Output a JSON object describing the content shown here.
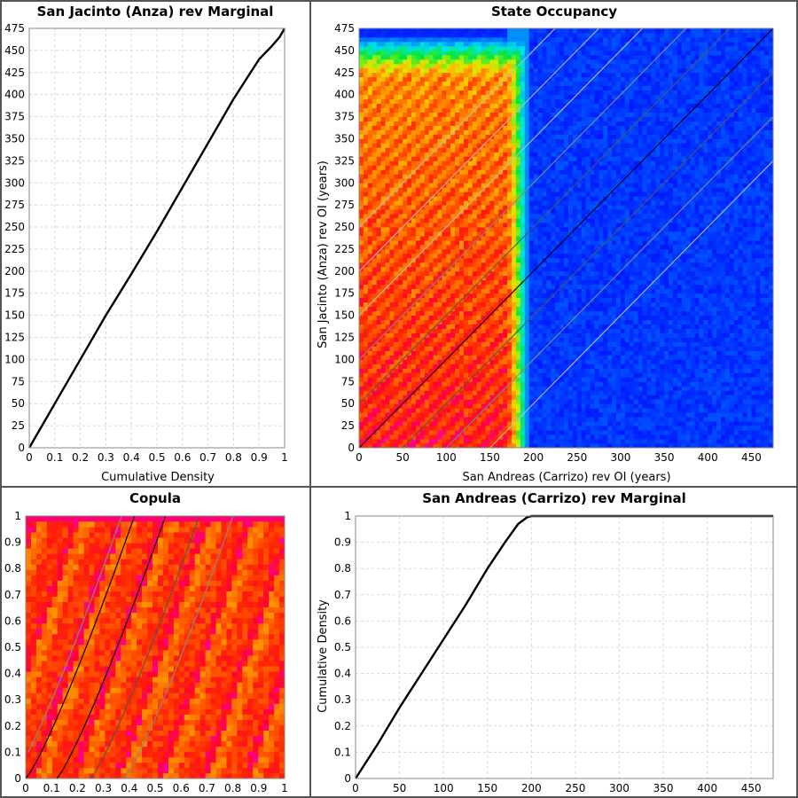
{
  "chart_data": [
    {
      "id": "sj_marginal",
      "type": "line",
      "title": "San Jacinto (Anza) rev Marginal",
      "xlabel": "Cumulative Density",
      "ylabel": "",
      "xlim": [
        0,
        1
      ],
      "ylim": [
        0,
        475
      ],
      "xticks": [
        "0",
        "0.1",
        "0.2",
        "0.3",
        "0.4",
        "0.5",
        "0.6",
        "0.7",
        "0.8",
        "0.9",
        "1"
      ],
      "yticks": [
        "0",
        "25",
        "50",
        "75",
        "100",
        "125",
        "150",
        "175",
        "200",
        "225",
        "250",
        "275",
        "300",
        "325",
        "350",
        "375",
        "400",
        "425",
        "450",
        "475"
      ],
      "grid": true,
      "series": [
        {
          "color": "#000000",
          "x": [
            0,
            0.05,
            0.1,
            0.2,
            0.3,
            0.4,
            0.5,
            0.6,
            0.7,
            0.8,
            0.9,
            0.95,
            0.98,
            0.99,
            1
          ],
          "y": [
            0,
            25,
            50,
            100,
            150,
            197,
            245,
            295,
            345,
            395,
            440,
            455,
            465,
            470,
            475
          ]
        }
      ]
    },
    {
      "id": "state_occupancy",
      "type": "heatmap",
      "title": "State Occupancy",
      "xlabel": "San Andreas (Carrizo) rev OI (years)",
      "ylabel": "San Jacinto (Anza) rev OI (years)",
      "xlim": [
        0,
        475
      ],
      "ylim": [
        0,
        475
      ],
      "xticks": [
        "0",
        "50",
        "100",
        "150",
        "200",
        "250",
        "300",
        "350",
        "400",
        "450"
      ],
      "yticks": [
        "0",
        "25",
        "50",
        "75",
        "100",
        "125",
        "150",
        "175",
        "200",
        "225",
        "250",
        "275",
        "300",
        "325",
        "350",
        "375",
        "400",
        "425",
        "450",
        "475"
      ],
      "grid": false,
      "diagonal_offsets": [
        -150,
        -100,
        -50,
        0,
        50,
        100,
        150,
        200,
        250
      ],
      "diagonal_colors": [
        "#bbbbbb",
        "#888888",
        "#555555",
        "#000000",
        "#555555",
        "#888888",
        "#bbbbbb",
        "#bbbbbb",
        "#bbbbbb"
      ]
    },
    {
      "id": "copula",
      "type": "heatmap",
      "title": "Copula",
      "xlabel": "",
      "ylabel": "",
      "xlim": [
        0,
        1
      ],
      "ylim": [
        0,
        1
      ],
      "xticks": [
        "0",
        "0.1",
        "0.2",
        "0.3",
        "0.4",
        "0.5",
        "0.6",
        "0.7",
        "0.8",
        "0.9",
        "1"
      ],
      "yticks": [
        "0",
        "0.1",
        "0.2",
        "0.3",
        "0.4",
        "0.5",
        "0.6",
        "0.7",
        "0.8",
        "0.9",
        "1"
      ],
      "grid": false,
      "curve_starts": [
        -0.05,
        0.0,
        0.12,
        0.25,
        0.38
      ],
      "curve_colors": [
        "#888888",
        "#000000",
        "#000000",
        "#555555",
        "#888888"
      ]
    },
    {
      "id": "sa_marginal",
      "type": "line",
      "title": "San Andreas (Carrizo) rev Marginal",
      "xlabel": "",
      "ylabel": "Cumulative Density",
      "xlim": [
        0,
        475
      ],
      "ylim": [
        0,
        1
      ],
      "xticks": [
        "0",
        "50",
        "100",
        "150",
        "200",
        "250",
        "300",
        "350",
        "400",
        "450"
      ],
      "yticks": [
        "0",
        "0.1",
        "0.2",
        "0.3",
        "0.4",
        "0.5",
        "0.6",
        "0.7",
        "0.8",
        "0.9",
        "1"
      ],
      "grid": true,
      "series": [
        {
          "color": "#000000",
          "x": [
            0,
            25,
            50,
            75,
            100,
            125,
            150,
            170,
            185,
            195,
            200,
            250,
            475
          ],
          "y": [
            0,
            0.13,
            0.27,
            0.4,
            0.53,
            0.66,
            0.8,
            0.9,
            0.97,
            0.995,
            1,
            1,
            1
          ]
        }
      ]
    }
  ]
}
